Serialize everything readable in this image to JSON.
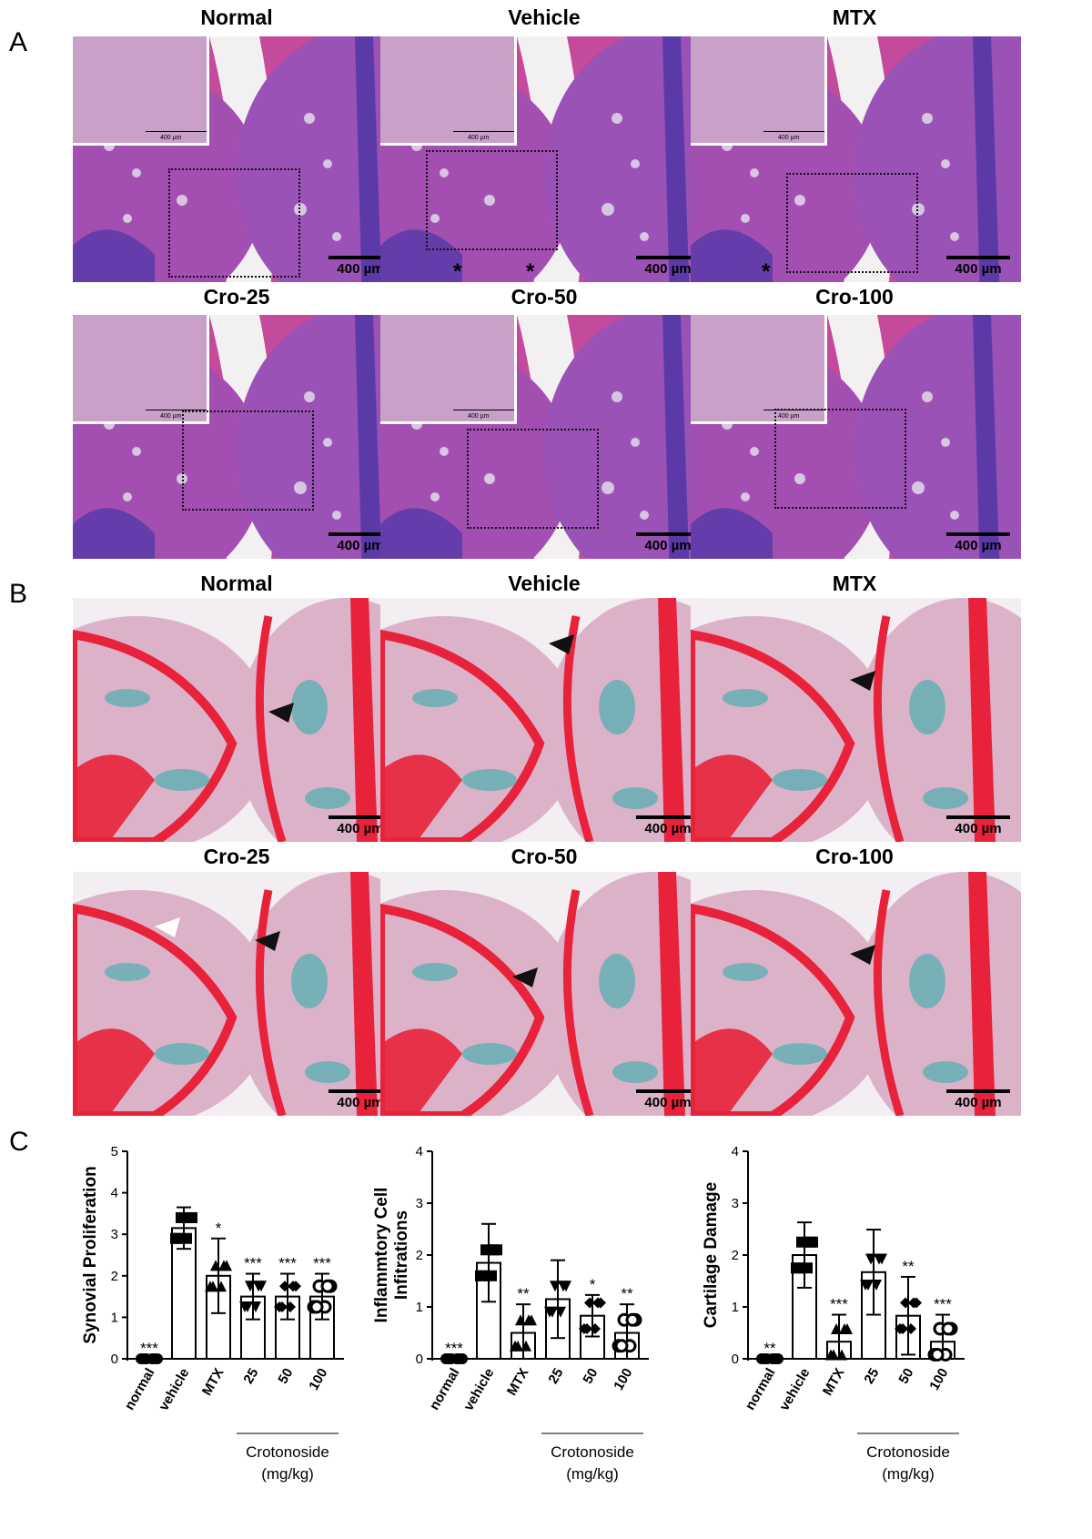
{
  "panels": {
    "a": {
      "letter": "A",
      "titles": [
        "Normal",
        "Vehicle",
        "MTX",
        "Cro-25",
        "Cro-50",
        "Cro-100"
      ],
      "scale": "400 µm",
      "inset_scale": "400 µm",
      "asterisk": "*"
    },
    "b": {
      "letter": "B",
      "titles": [
        "Normal",
        "Vehicle",
        "MTX",
        "Cro-25",
        "Cro-50",
        "Cro-100"
      ],
      "scale": "400 µm"
    },
    "c": {
      "letter": "C"
    }
  },
  "colors": {
    "he_bg": "#c44a9b",
    "he_dark": "#5b3aa8",
    "safo_red": "#e8223a",
    "safo_teal": "#55b0b0",
    "safo_pink": "#dcb2c9"
  },
  "chart_data": [
    {
      "type": "bar",
      "ylabel": "Synovial Proliferation",
      "ylim": [
        0,
        5
      ],
      "yticks": [
        0,
        1,
        2,
        3,
        4,
        5
      ],
      "categories": [
        "normal",
        "vehicle",
        "MTX",
        "25",
        "50",
        "100"
      ],
      "values": [
        0,
        3.15,
        2.0,
        1.5,
        1.5,
        1.5
      ],
      "errors": [
        0,
        0.5,
        0.9,
        0.55,
        0.55,
        0.55
      ],
      "significance": [
        "***",
        "",
        "*",
        "***",
        "***",
        "***"
      ],
      "group_label": "Crotonoside",
      "group_unit": "(mg/kg)"
    },
    {
      "type": "bar",
      "ylabel": "Inflammtory Cell Infitrations",
      "ylim": [
        0,
        4
      ],
      "yticks": [
        0,
        1,
        2,
        3,
        4
      ],
      "categories": [
        "normal",
        "vehicle",
        "MTX",
        "25",
        "50",
        "100"
      ],
      "values": [
        0,
        1.85,
        0.5,
        1.15,
        0.83,
        0.5
      ],
      "errors": [
        0,
        0.75,
        0.55,
        0.75,
        0.4,
        0.55
      ],
      "significance": [
        "***",
        "",
        "**",
        "",
        "*",
        "**"
      ],
      "group_label": "Crotonoside",
      "group_unit": "(mg/kg)"
    },
    {
      "type": "bar",
      "ylabel": "Cartilage Damage",
      "ylim": [
        0,
        4
      ],
      "yticks": [
        0,
        1,
        2,
        3,
        4
      ],
      "categories": [
        "normal",
        "vehicle",
        "MTX",
        "25",
        "50",
        "100"
      ],
      "values": [
        0,
        2.0,
        0.33,
        1.67,
        0.83,
        0.33
      ],
      "errors": [
        0,
        0.63,
        0.52,
        0.82,
        0.75,
        0.52
      ],
      "significance": [
        "**",
        "",
        "***",
        "",
        "**",
        "***"
      ],
      "group_label": "Crotonoside",
      "group_unit": "(mg/kg)"
    }
  ]
}
